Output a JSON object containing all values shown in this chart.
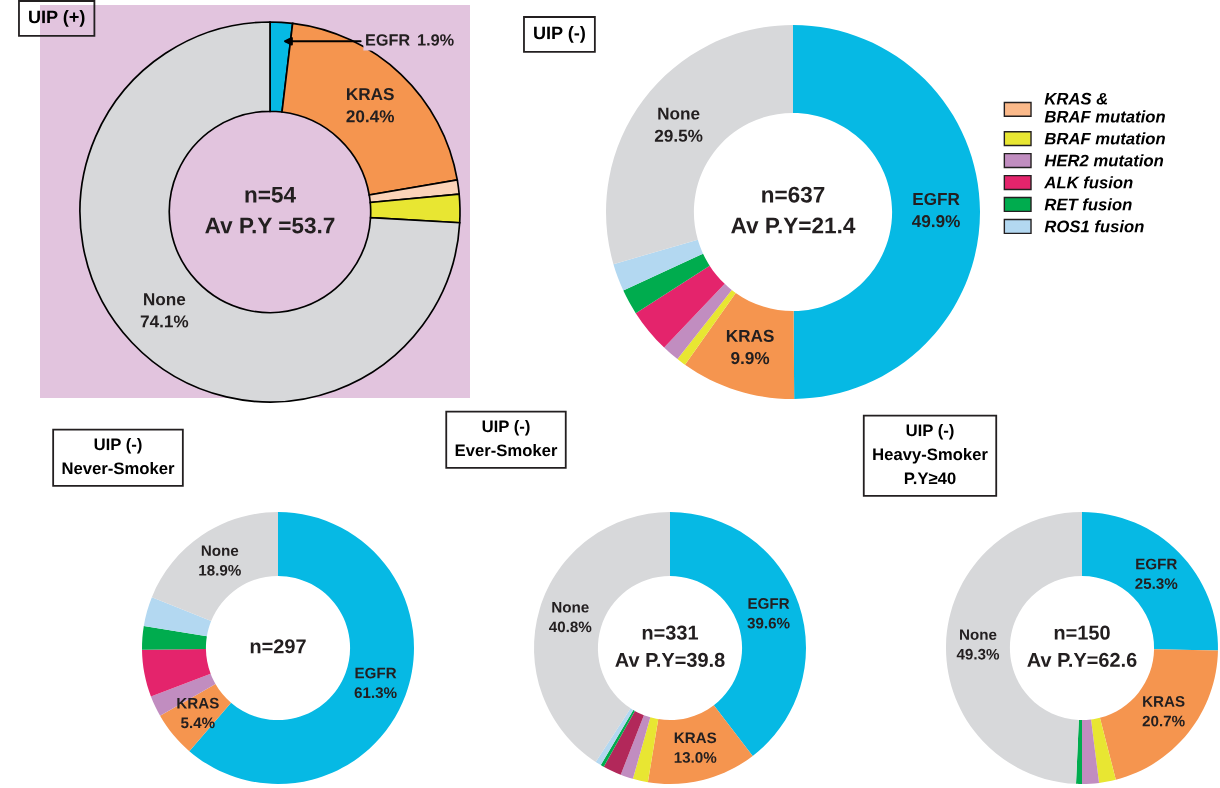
{
  "chart_data": [
    {
      "type": "donut",
      "title": "UIP (+)",
      "categories": [
        "EGFR",
        "KRAS",
        null,
        null,
        "None"
      ],
      "values": [
        1.9,
        20.4,
        1.2,
        2.4,
        74.1
      ],
      "colors": [
        "#06b9e4",
        "#f5954f",
        "#fbd3b8",
        "#e8e632",
        "#d7d8da"
      ],
      "value_labels": [
        "1.9%",
        "20.4%",
        null,
        null,
        "74.1%"
      ],
      "annotations": [
        "n=54",
        "Av P.Y =53.7"
      ]
    },
    {
      "type": "donut",
      "title": "UIP (-)",
      "categories": [
        "EGFR",
        "KRAS",
        "KRAS & BRAF mutation",
        "BRAF mutation",
        "HER2 mutation",
        "ALK fusion",
        "RET fusion",
        "ROS1 fusion",
        "None"
      ],
      "values": [
        49.9,
        9.9,
        0,
        0.8,
        1.5,
        3.8,
        2.2,
        2.4,
        29.5
      ],
      "colors": [
        "#06b9e4",
        "#f5954f",
        "#fbb98a",
        "#e8e632",
        "#c18dc0",
        "#e4246c",
        "#00ac4e",
        "#b3d8f1",
        "#d7d8da"
      ],
      "value_labels": [
        "49.9%",
        "9.9%",
        null,
        null,
        null,
        null,
        null,
        null,
        "29.5%"
      ],
      "legend": "right",
      "annotations": [
        "n=637",
        "Av P.Y=21.4"
      ]
    },
    {
      "type": "donut",
      "title": "UIP (-)\nNever-Smoker",
      "categories": [
        "EGFR",
        "KRAS",
        null,
        null,
        null,
        null,
        "None"
      ],
      "values": [
        61.3,
        5.4,
        2.5,
        5.6,
        2.8,
        3.5,
        18.9
      ],
      "colors": [
        "#06b9e4",
        "#f5954f",
        "#c18dc0",
        "#e4246c",
        "#00ac4e",
        "#b3d8f1",
        "#d7d8da"
      ],
      "value_labels": [
        "61.3%",
        "5.4%",
        null,
        null,
        null,
        null,
        "18.9%"
      ],
      "annotations": [
        "n=297"
      ]
    },
    {
      "type": "donut",
      "title": "UIP (-)\nEver-Smoker",
      "categories": [
        "EGFR",
        "KRAS",
        null,
        null,
        null,
        null,
        null,
        "None"
      ],
      "values": [
        39.6,
        13.0,
        1.8,
        1.5,
        2.2,
        0.4,
        0.7,
        40.8
      ],
      "colors": [
        "#06b9e4",
        "#f5954f",
        "#e8e632",
        "#c18dc0",
        "#b2285a",
        "#00ac4e",
        "#b3d8f1",
        "#d7d8da"
      ],
      "value_labels": [
        "39.6%",
        "13.0%",
        null,
        null,
        null,
        null,
        null,
        "40.8%"
      ],
      "annotations": [
        "n=331",
        "Av P.Y=39.8"
      ]
    },
    {
      "type": "donut",
      "title": "UIP (-)\nHeavy-Smoker\nP.Y≥40",
      "categories": [
        "EGFR",
        "KRAS",
        null,
        null,
        null,
        "None"
      ],
      "values": [
        25.3,
        20.7,
        2.0,
        2.0,
        0.7,
        49.3
      ],
      "colors": [
        "#06b9e4",
        "#f5954f",
        "#e8e632",
        "#c18dc0",
        "#00ac4e",
        "#d7d8da"
      ],
      "value_labels": [
        "25.3%",
        "20.7%",
        null,
        null,
        null,
        "49.3%"
      ],
      "annotations": [
        "n=150",
        "Av P.Y=62.6"
      ]
    }
  ]
}
